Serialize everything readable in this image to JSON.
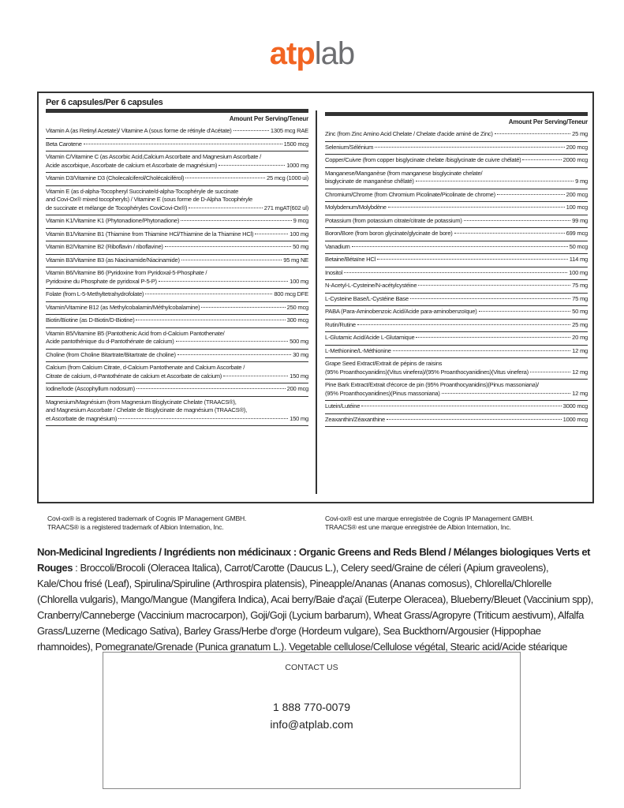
{
  "logo": {
    "part1": "atp",
    "part2": "lab"
  },
  "panel": {
    "title": "Per 6 capsules/Per 6 capsules",
    "left": {
      "header": "Amount Per Serving/Teneur",
      "rows": [
        {
          "lines": [
            "Vitamin A (as Retinyl Acetate)/ Vitamine A (sous forme de rétinyle d'Acétate)"
          ],
          "amount": "1305 mcg RAE"
        },
        {
          "lines": [
            "Beta Carotene"
          ],
          "amount": "1500 mcg"
        },
        {
          "lines": [
            "Vitamin C/Vitamine C (as Ascorbic Acid,Calcium Ascorbate and Magnesium Ascorbate /",
            "Acide ascorbique, Ascorbate de calcium et Ascorbate de magnésium)"
          ],
          "amount": "1000 mg"
        },
        {
          "lines": [
            "Vitamin D3/Vitamine D3 (Cholecalciferol/Cholécalciférol)"
          ],
          "amount": "25 mcg (1000 ui)"
        },
        {
          "lines": [
            "Vitamin E (as d-alpha-Tocopheryl Succinate/d-alpha-Tocophéryle de succinate",
            "and Covi-Ox® mixed tocopheryls) / Vitamine E (sous forme de D-Alpha Tocophéryle",
            "de succinate et mélange de Tocophéryles CoviCovi-Ox®)"
          ],
          "amount": "271 mgAT(602 ul)"
        },
        {
          "lines": [
            "Vitamin K1/Vitamine K1 (Phytonadione/Phytonadione)"
          ],
          "amount": "9 mcg"
        },
        {
          "lines": [
            "Vitamin B1/Vitamine B1 (Thiamine from Thiamine HCl/Thiamine de la Thiamine HCl)"
          ],
          "amount": "100 mg"
        },
        {
          "lines": [
            "Vitamin B2/Vitamine B2 (Riboflavin / riboflavine)"
          ],
          "amount": "50 mg"
        },
        {
          "lines": [
            "Vitamin B3/Vitamine B3 (as Niacinamide/Niacinamide)"
          ],
          "amount": "95 mg NE"
        },
        {
          "lines": [
            "Vitamin B6/Vitamine B6 (Pyridoxine from Pyridoxal-5-Phosphate /",
            "Pyridoxine du Phosphate de pyridoxal P-5-P)"
          ],
          "amount": "100 mg"
        },
        {
          "lines": [
            "Folate (from L-5-Methyltetrahydrofolate)"
          ],
          "amount": "800 mcg DFE"
        },
        {
          "lines": [
            "Vitamin/Vitamine B12 (as Methylcobalamin/Méthylcobalamine)"
          ],
          "amount": "250 mcg"
        },
        {
          "lines": [
            "Biotin/Biotine (as D-Biotin/D-Biotine)"
          ],
          "amount": "300 mcg"
        },
        {
          "lines": [
            "Vitamin B5/Vitamine B5 (Pantothenic Acid from d-Calcium Pantothenate/",
            "Acide pantothénique du d-Pantothénate de calcium)"
          ],
          "amount": "500 mg"
        },
        {
          "lines": [
            "Choline (from Choline Bitartrate/Bitartrate de choline)"
          ],
          "amount": "30 mg"
        },
        {
          "lines": [
            "Calcium (from Calcium Citrate, d-Calcium Pantothenate and Calcium Ascorbate /",
            "Citrate de calcium, d-Pantothénate de calcium et Ascorbate de calcium)"
          ],
          "amount": "150 mg"
        },
        {
          "lines": [
            "Iodine/Iode (Ascophyllum nodosum)"
          ],
          "amount": "200 mcg"
        },
        {
          "lines": [
            "Magnesium/Magnésium (from Magnesium Bisglycinate Chelate (TRAACS®),",
            "and Magnesium Ascorbate / Chelate de Bisglycinate de magnésium (TRAACS®),",
            "et Ascorbate de magnésium)"
          ],
          "amount": "150 mg"
        }
      ]
    },
    "right": {
      "header": "Amount Per Serving/Teneur",
      "rows": [
        {
          "lines": [
            "Zinc (from Zinc Amino Acid Chelate / Chelate d'acide aminé de Zinc)"
          ],
          "amount": "25 mg"
        },
        {
          "lines": [
            "Selenium/Sélénium"
          ],
          "amount": "200 mcg"
        },
        {
          "lines": [
            "Copper/Cuivre (from copper bisglycinate chelate /bisglycinate de cuivre chélaté)"
          ],
          "amount": "2000 mcg"
        },
        {
          "lines": [
            "Manganese/Manganèse (from manganese bisglycinate chelate/",
            "bisglycinate de manganèse chêlaté)"
          ],
          "amount": "9 mg"
        },
        {
          "lines": [
            "Chromium/Chrome (from Chromium Picolinate/Picolinate de chrome)"
          ],
          "amount": "200 mcg"
        },
        {
          "lines": [
            "Molybdenum/Molybdène"
          ],
          "amount": "100 mcg"
        },
        {
          "lines": [
            "Potassium (from potassium citrate/citrate de potassium)"
          ],
          "amount": "99 mg"
        },
        {
          "lines": [
            "Boron/Bore (from boron glycinate/glycinate de bore)"
          ],
          "amount": "699 mcg"
        },
        {
          "lines": [
            "Vanadium"
          ],
          "amount": "50 mcg"
        },
        {
          "lines": [
            "Betaine/Bétaïne HCl"
          ],
          "amount": "114 mg"
        },
        {
          "lines": [
            "Inositol"
          ],
          "amount": "100 mg"
        },
        {
          "lines": [
            "N-Acetyl-L-Cysteine/N-acétylcystéine"
          ],
          "amount": "75 mg"
        },
        {
          "lines": [
            "L-Cysteine Base/L-Cystéine Base"
          ],
          "amount": "75 mg"
        },
        {
          "lines": [
            "PABA (Para-Aminobenzoic Acid/Acide para-aminobenzoïque)"
          ],
          "amount": "50 mg"
        },
        {
          "lines": [
            "Rutin/Rutine"
          ],
          "amount": "25 mg"
        },
        {
          "lines": [
            "L-Glutamic Acid/Acide L-Glutamique"
          ],
          "amount": "20 mg"
        },
        {
          "lines": [
            "L-Methionine/L-Méthionine"
          ],
          "amount": "12 mg"
        },
        {
          "lines": [
            "Grape Seed Extract/Extrait de pépins de raisins",
            "(95% Proanthocyanidins)(Vitus vinefera)/(95% Proanthocyanidines)(Vitus vinefera)"
          ],
          "amount": "12 mg"
        },
        {
          "lines": [
            "Pine Bark Extract/Extrait d'écorce de pin (95% Proanthocyanidins)(Pinus massoniana)/",
            "(95% Proanthocyanidines)(Pinus massoniana)"
          ],
          "amount": "12 mg"
        },
        {
          "lines": [
            "Lutein/Lutéine"
          ],
          "amount": "3000 mcg"
        },
        {
          "lines": [
            "Zeaxanthin/Zéaxanthine"
          ],
          "amount": "1000 mcg"
        }
      ]
    }
  },
  "trademarks": {
    "left": [
      "Covi-ox® is a registered trademark of Cognis IP Management GMBH.",
      "TRAACS® is a registered trademark of Albion Internation, Inc."
    ],
    "right": [
      "Covi-ox® est une marque enregistrée de Cognis IP Management GMBH.",
      "TRAACS® est une marque enregistrée de Albion Internation, Inc."
    ]
  },
  "ingredients": {
    "bold": "Non-Medicinal Ingredients / Ingrédients non médicinaux : Organic Greens and Reds Blend / Mélanges biologiques Verts et Rouges",
    "text": ": Broccoli/Brocoli (Oleracea Italica), Carrot/Carotte (Daucus L.), Celery seed/Graine de céleri (Apium graveolens), Kale/Chou frisé (Leaf), Spirulina/Spiruline (Arthrospira platensis), Pineapple/Ananas (Ananas comosus), Chlorella/Chlorelle (Chlorella vulgaris), Mango/Mangue (Mangifera Indica), Acai berry/Baie d'açaï (Euterpe Oleracea), Blueberry/Bleuet (Vaccinium spp), Cranberry/Canneberge (Vaccinium macrocarpon), Goji/Goji (Lycium barbarum), Wheat Grass/Agropyre (Triticum aestivum), Alfalfa Grass/Luzerne (Medicago Sativa), Barley Grass/Herbe d'orge (Hordeum vulgare), Sea Buckthorn/Argousier (Hippophae rhamnoides), Pomegranate/Grenade (Punica granatum L.). Vegetable cellulose/Cellulose végétal, Stearic acid/Acide stéarique"
  },
  "contact": {
    "label": "CONTACT US",
    "phone": "1 888 770-0079",
    "email": "info@atplab.com"
  }
}
